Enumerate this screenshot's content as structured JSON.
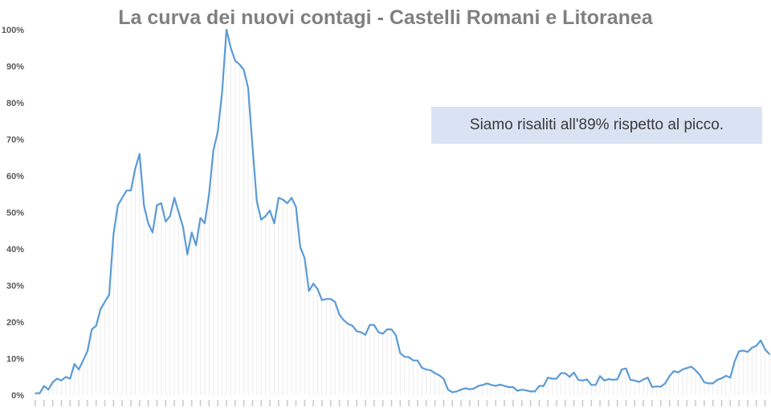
{
  "chart_data": {
    "type": "line",
    "title": "La curva dei nuovi contagi - Castelli Romani e Litoranea",
    "xlabel": "",
    "ylabel": "",
    "ylim": [
      0,
      100
    ],
    "y_unit": "%",
    "yticks": [
      "0%",
      "10%",
      "20%",
      "30%",
      "40%",
      "50%",
      "60%",
      "70%",
      "80%",
      "90%",
      "100%"
    ],
    "grid": false,
    "legend": "none",
    "series_color": "#5b9bd5",
    "values": [
      0.5,
      0.5,
      2.5,
      1.5,
      3.5,
      4.5,
      4,
      5,
      4.5,
      8.5,
      7,
      9.5,
      12,
      18,
      19,
      23.5,
      25.5,
      27.5,
      44,
      52,
      54,
      56,
      56,
      62,
      66,
      52,
      47,
      44.5,
      52,
      52.5,
      47.5,
      49,
      54,
      50,
      46,
      38.5,
      44.5,
      41,
      48.5,
      47,
      55,
      67,
      72,
      83,
      100,
      95,
      91.5,
      90.5,
      89,
      84,
      68,
      53,
      48,
      49,
      50.5,
      47,
      54,
      53.5,
      52.5,
      54,
      51.5,
      40.5,
      37.5,
      28.5,
      30.5,
      29,
      26,
      26.3,
      26.3,
      25.5,
      22,
      20.5,
      19.5,
      19,
      17.5,
      17.2,
      16.5,
      19.2,
      19.2,
      17.2,
      16.8,
      18,
      18,
      16.4,
      11.5,
      10.5,
      10.4,
      9.5,
      9.5,
      7.5,
      7,
      6.8,
      6,
      5.4,
      4.5,
      1.5,
      0.8,
      1,
      1.5,
      1.9,
      1.6,
      1.8,
      2.5,
      2.8,
      3.2,
      2.8,
      2.5,
      2.9,
      2.5,
      2.2,
      2.2,
      1.2,
      1.5,
      1.3,
      1,
      1,
      2.5,
      2.5,
      4.8,
      4.5,
      4.5,
      6,
      6,
      5,
      6.2,
      4.2,
      4,
      4.3,
      2.8,
      2.8,
      5.2,
      4,
      4.4,
      4.2,
      4.3,
      7,
      7.3,
      4.2,
      4,
      3.6,
      4.3,
      4.8,
      2.2,
      2.4,
      2.3,
      3.2,
      5.2,
      6.6,
      6.2,
      7,
      7.4,
      7.8,
      6.8,
      5.5,
      3.5,
      3.2,
      3.2,
      4.2,
      4.6,
      5.3,
      4.8,
      9.2,
      12,
      12.2,
      11.8,
      13,
      13.5,
      15,
      12.5,
      11.2
    ],
    "annotation": "Siamo risaliti all'89% rispetto al picco."
  }
}
